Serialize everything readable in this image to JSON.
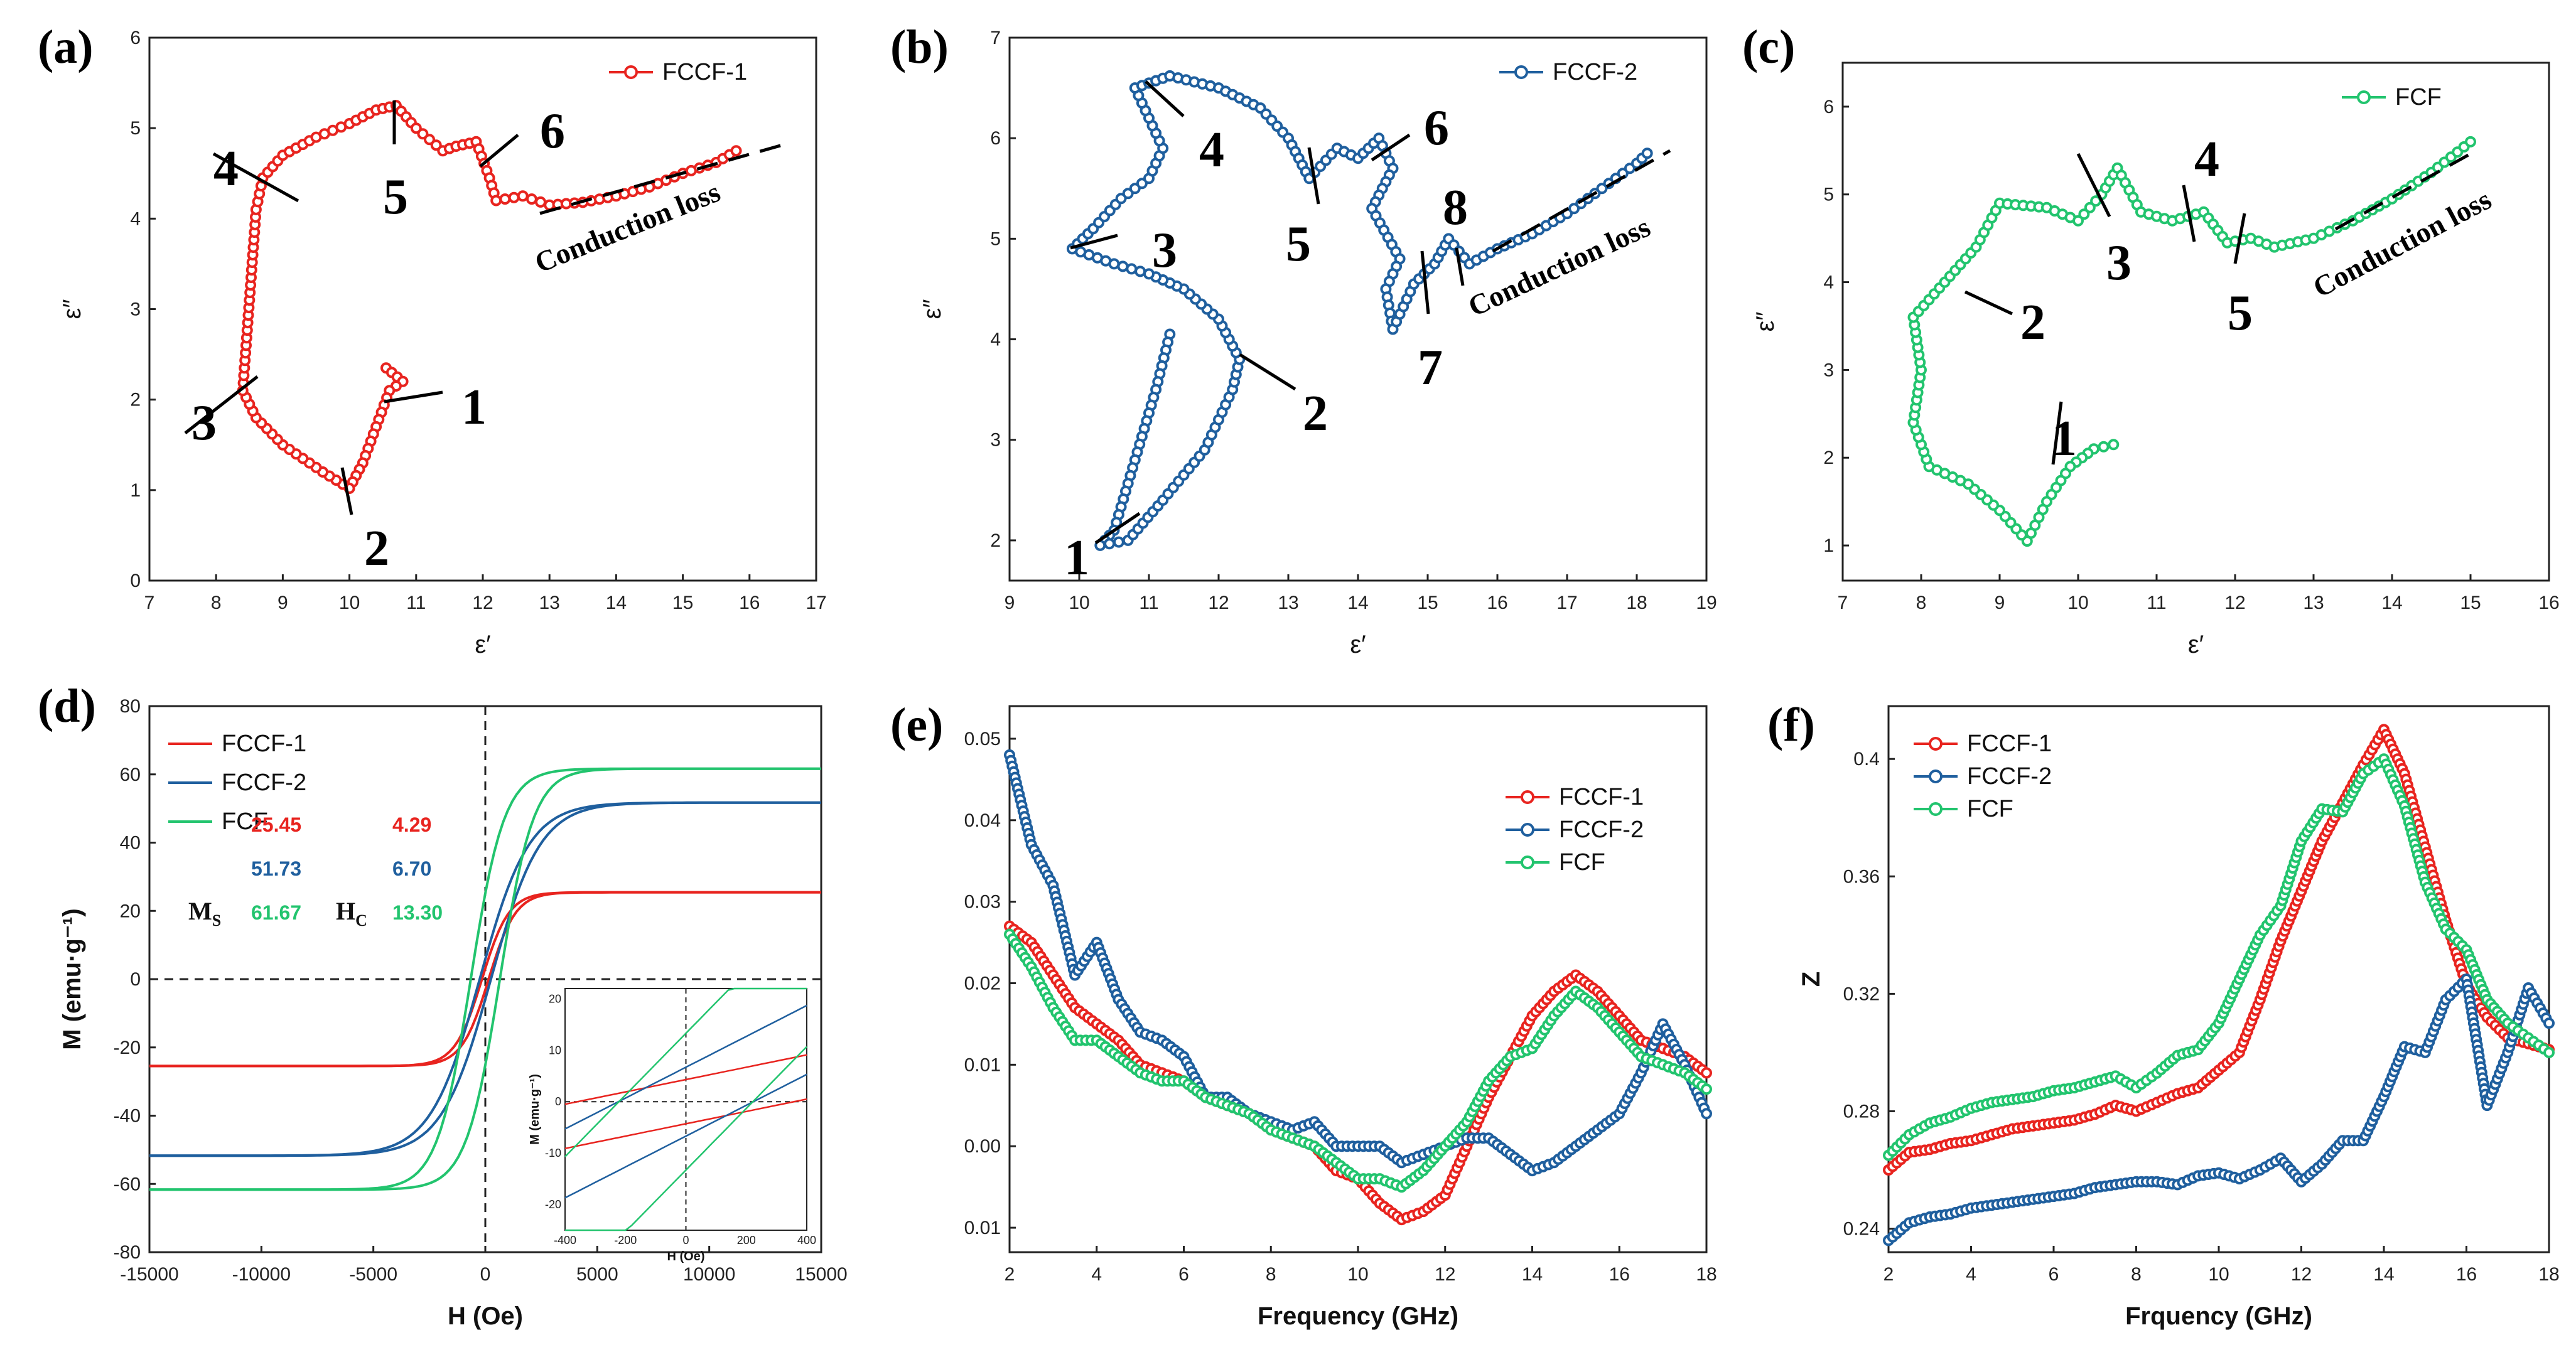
{
  "figure": {
    "panels": {
      "a": {
        "label": "(a)",
        "legend": "FCCF-1",
        "xlabel": "ε′",
        "ylabel": "ε″",
        "color": "#e8241f"
      },
      "b": {
        "label": "(b)",
        "legend": "FCCF-2",
        "xlabel": "ε′",
        "ylabel": "ε″",
        "color": "#1f5f9e"
      },
      "c": {
        "label": "(c)",
        "legend": "FCF",
        "xlabel": "ε′",
        "ylabel": "ε″",
        "color": "#22c46e"
      },
      "d": {
        "label": "(d)",
        "xlabel": "H (Oe)",
        "ylabel": "M (emu·g⁻¹)",
        "legend": [
          "FCCF-1",
          "FCCF-2",
          "FCF"
        ],
        "ms_label": "M",
        "ms_sub": "S",
        "hc_label": "H",
        "hc_sub": "C",
        "ms_values": [
          "25.45",
          "51.73",
          "61.67"
        ],
        "hc_values": [
          "4.29",
          "6.70",
          "13.30"
        ],
        "inset_xlabel": "H (Oe)",
        "inset_ylabel": "M (emu·g⁻¹)"
      },
      "e": {
        "label": "(e)",
        "xlabel": "Frequency (GHz)",
        "legend": [
          "FCCF-1",
          "FCCF-2",
          "FCF"
        ]
      },
      "f": {
        "label": "(f)",
        "xlabel": "Frquency (GHz)",
        "ylabel": "Z",
        "legend": [
          "FCCF-1",
          "FCCF-2",
          "FCF"
        ]
      }
    },
    "annotations": {
      "a": [
        "1",
        "2",
        "3",
        "4",
        "5",
        "6",
        "Conduction loss"
      ],
      "b": [
        "1",
        "2",
        "3",
        "4",
        "5",
        "6",
        "7",
        "8",
        "Conduction loss"
      ],
      "c": [
        "1",
        "2",
        "3",
        "4",
        "5",
        "Conduction loss"
      ]
    }
  },
  "chart_data": [
    {
      "id": "a",
      "type": "scatter",
      "title": "",
      "xlabel": "ε′",
      "ylabel": "ε″",
      "xlim": [
        7,
        17
      ],
      "ylim": [
        0,
        6
      ],
      "xticks": [
        7,
        8,
        9,
        10,
        11,
        12,
        13,
        14,
        15,
        16,
        17
      ],
      "yticks": [
        0,
        1,
        2,
        3,
        4,
        5,
        6
      ],
      "series": [
        {
          "name": "FCCF-1",
          "color": "#e8241f",
          "points": [
            [
              10.55,
              2.35
            ],
            [
              10.8,
              2.2
            ],
            [
              10.6,
              2.1
            ],
            [
              10.4,
              1.7
            ],
            [
              10.2,
              1.3
            ],
            [
              10.0,
              1.02
            ],
            [
              9.6,
              1.2
            ],
            [
              9.0,
              1.5
            ],
            [
              8.6,
              1.8
            ],
            [
              8.4,
              2.1
            ],
            [
              8.45,
              2.6
            ],
            [
              8.5,
              3.1
            ],
            [
              8.55,
              3.6
            ],
            [
              8.6,
              4.1
            ],
            [
              8.7,
              4.45
            ],
            [
              9.0,
              4.7
            ],
            [
              9.5,
              4.9
            ],
            [
              10.0,
              5.05
            ],
            [
              10.4,
              5.2
            ],
            [
              10.7,
              5.25
            ],
            [
              11.0,
              5.0
            ],
            [
              11.4,
              4.75
            ],
            [
              11.6,
              4.8
            ],
            [
              11.9,
              4.85
            ],
            [
              12.1,
              4.45
            ],
            [
              12.2,
              4.2
            ],
            [
              12.6,
              4.25
            ],
            [
              13.0,
              4.15
            ],
            [
              13.5,
              4.18
            ],
            [
              14.0,
              4.25
            ],
            [
              14.5,
              4.35
            ],
            [
              15.0,
              4.5
            ],
            [
              15.5,
              4.62
            ],
            [
              15.8,
              4.75
            ]
          ]
        }
      ]
    },
    {
      "id": "b",
      "type": "scatter",
      "title": "",
      "xlabel": "ε′",
      "ylabel": "ε″",
      "xlim": [
        9,
        19
      ],
      "ylim": [
        1.6,
        7
      ],
      "xticks": [
        9,
        10,
        11,
        12,
        13,
        14,
        15,
        16,
        17,
        18,
        19
      ],
      "yticks": [
        2,
        3,
        4,
        5,
        6,
        7
      ],
      "series": [
        {
          "name": "FCCF-2",
          "color": "#1f5f9e",
          "points": [
            [
              11.3,
              4.05
            ],
            [
              11.1,
              3.5
            ],
            [
              10.8,
              2.8
            ],
            [
              10.5,
              2.1
            ],
            [
              10.3,
              1.95
            ],
            [
              10.7,
              2.0
            ],
            [
              11.2,
              2.4
            ],
            [
              11.8,
              2.9
            ],
            [
              12.2,
              3.5
            ],
            [
              12.3,
              3.8
            ],
            [
              12.0,
              4.2
            ],
            [
              11.5,
              4.5
            ],
            [
              11.0,
              4.65
            ],
            [
              10.5,
              4.75
            ],
            [
              9.9,
              4.9
            ],
            [
              10.2,
              5.1
            ],
            [
              10.6,
              5.4
            ],
            [
              11.0,
              5.6
            ],
            [
              11.2,
              5.9
            ],
            [
              10.8,
              6.5
            ],
            [
              11.3,
              6.62
            ],
            [
              12.0,
              6.5
            ],
            [
              12.6,
              6.3
            ],
            [
              13.0,
              6.0
            ],
            [
              13.3,
              5.6
            ],
            [
              13.7,
              5.9
            ],
            [
              14.0,
              5.8
            ],
            [
              14.3,
              6.0
            ],
            [
              14.5,
              5.7
            ],
            [
              14.2,
              5.3
            ],
            [
              14.6,
              4.8
            ],
            [
              14.4,
              4.5
            ],
            [
              14.5,
              4.1
            ],
            [
              14.8,
              4.55
            ],
            [
              15.1,
              4.75
            ],
            [
              15.3,
              5.0
            ],
            [
              15.6,
              4.75
            ],
            [
              16.0,
              4.9
            ],
            [
              16.5,
              5.05
            ],
            [
              17.0,
              5.25
            ],
            [
              17.5,
              5.5
            ],
            [
              18.0,
              5.75
            ],
            [
              18.15,
              5.85
            ]
          ]
        }
      ]
    },
    {
      "id": "c",
      "type": "scatter",
      "title": "",
      "xlabel": "ε′",
      "ylabel": "ε″",
      "xlim": [
        7,
        16
      ],
      "ylim": [
        0.6,
        6.5
      ],
      "xticks": [
        7,
        8,
        9,
        10,
        11,
        12,
        13,
        14,
        15,
        16
      ],
      "yticks": [
        1,
        2,
        3,
        4,
        5,
        6
      ],
      "series": [
        {
          "name": "FCF",
          "color": "#22c46e",
          "points": [
            [
              10.45,
              2.15
            ],
            [
              10.2,
              2.1
            ],
            [
              9.9,
              1.9
            ],
            [
              9.6,
              1.5
            ],
            [
              9.35,
              1.05
            ],
            [
              9.0,
              1.4
            ],
            [
              8.6,
              1.7
            ],
            [
              8.1,
              1.9
            ],
            [
              7.9,
              2.4
            ],
            [
              8.0,
              3.0
            ],
            [
              7.9,
              3.6
            ],
            [
              8.3,
              4.0
            ],
            [
              8.7,
              4.4
            ],
            [
              9.0,
              4.9
            ],
            [
              9.6,
              4.85
            ],
            [
              10.0,
              4.7
            ],
            [
              10.3,
              5.0
            ],
            [
              10.5,
              5.3
            ],
            [
              10.8,
              4.8
            ],
            [
              11.2,
              4.7
            ],
            [
              11.6,
              4.8
            ],
            [
              11.9,
              4.45
            ],
            [
              12.2,
              4.5
            ],
            [
              12.5,
              4.4
            ],
            [
              13.0,
              4.5
            ],
            [
              13.5,
              4.7
            ],
            [
              14.0,
              4.95
            ],
            [
              14.5,
              5.25
            ],
            [
              15.0,
              5.6
            ]
          ]
        }
      ]
    },
    {
      "id": "d",
      "type": "line",
      "title": "",
      "xlabel": "H (Oe)",
      "ylabel": "M (emu·g⁻¹)",
      "xlim": [
        -15000,
        15000
      ],
      "ylim": [
        -80,
        80
      ],
      "xticks": [
        -15000,
        -10000,
        -5000,
        0,
        5000,
        10000,
        15000
      ],
      "yticks": [
        -80,
        -60,
        -40,
        -20,
        0,
        20,
        40,
        60,
        80
      ],
      "series": [
        {
          "name": "FCCF-1",
          "color": "#e8241f",
          "Ms": 25.45,
          "Hc": 4.29
        },
        {
          "name": "FCCF-2",
          "color": "#1f5f9e",
          "Ms": 51.73,
          "Hc": 6.7
        },
        {
          "name": "FCF",
          "color": "#22c46e",
          "Ms": 61.67,
          "Hc": 13.3
        }
      ],
      "inset": {
        "xlim": [
          -400,
          400
        ],
        "ylim": [
          -25,
          22
        ],
        "xticks": [
          -400,
          -200,
          0,
          200,
          400
        ],
        "yticks": [
          -20,
          -10,
          0,
          10,
          20
        ]
      }
    },
    {
      "id": "e",
      "type": "line",
      "title": "",
      "xlabel": "Frequency (GHz)",
      "ylabel": "",
      "xlim": [
        2,
        18
      ],
      "ylim": [
        -0.013,
        0.054
      ],
      "xticks": [
        2,
        4,
        6,
        8,
        10,
        12,
        14,
        16,
        18
      ],
      "yticks": [
        0.05,
        0.04,
        0.03,
        0.02,
        0.01,
        0.0,
        -0.01
      ],
      "ytick_labels": [
        "0.05",
        "0.04",
        "0.03",
        "0.02",
        "0.01",
        "0.00",
        "0.01"
      ],
      "x": [
        2,
        2.5,
        3,
        3.5,
        4,
        4.5,
        5,
        5.5,
        6,
        6.5,
        7,
        7.5,
        8,
        8.5,
        9,
        9.5,
        10,
        10.5,
        11,
        11.5,
        12,
        12.5,
        13,
        13.5,
        14,
        14.5,
        15,
        15.5,
        16,
        16.5,
        17,
        17.5,
        18
      ],
      "series": [
        {
          "name": "FCCF-1",
          "color": "#e8241f",
          "values": [
            0.027,
            0.025,
            0.021,
            0.017,
            0.015,
            0.013,
            0.01,
            0.009,
            0.008,
            0.006,
            0.005,
            0.004,
            0.002,
            0.001,
            0.0,
            -0.003,
            -0.004,
            -0.007,
            -0.009,
            -0.008,
            -0.006,
            0.0,
            0.006,
            0.011,
            0.016,
            0.019,
            0.021,
            0.019,
            0.016,
            0.013,
            0.012,
            0.011,
            0.009
          ]
        },
        {
          "name": "FCCF-2",
          "color": "#1f5f9e",
          "values": [
            0.048,
            0.037,
            0.032,
            0.021,
            0.025,
            0.018,
            0.014,
            0.013,
            0.011,
            0.006,
            0.006,
            0.004,
            0.003,
            0.002,
            0.003,
            0.0,
            0.0,
            0.0,
            -0.002,
            -0.001,
            0.0,
            0.001,
            0.001,
            -0.001,
            -0.003,
            -0.002,
            0.0,
            0.002,
            0.004,
            0.009,
            0.015,
            0.01,
            0.004
          ]
        },
        {
          "name": "FCF",
          "color": "#22c46e",
          "values": [
            0.026,
            0.022,
            0.017,
            0.013,
            0.013,
            0.011,
            0.009,
            0.008,
            0.008,
            0.006,
            0.005,
            0.004,
            0.002,
            0.001,
            0.0,
            -0.002,
            -0.004,
            -0.004,
            -0.005,
            -0.003,
            0.0,
            0.003,
            0.008,
            0.011,
            0.012,
            0.016,
            0.019,
            0.017,
            0.014,
            0.011,
            0.01,
            0.009,
            0.007
          ]
        }
      ]
    },
    {
      "id": "f",
      "type": "line",
      "title": "",
      "xlabel": "Frquency (GHz)",
      "ylabel": "Z",
      "xlim": [
        2,
        18
      ],
      "ylim": [
        0.232,
        0.418
      ],
      "xticks": [
        2,
        4,
        6,
        8,
        10,
        12,
        14,
        16,
        18
      ],
      "yticks": [
        0.24,
        0.28,
        0.32,
        0.36,
        0.4
      ],
      "x": [
        2,
        2.5,
        3,
        3.5,
        4,
        4.5,
        5,
        5.5,
        6,
        6.5,
        7,
        7.5,
        8,
        8.5,
        9,
        9.5,
        10,
        10.5,
        11,
        11.5,
        12,
        12.5,
        13,
        13.5,
        14,
        14.5,
        15,
        15.5,
        16,
        16.5,
        17,
        17.5,
        18
      ],
      "series": [
        {
          "name": "FCCF-1",
          "color": "#e8241f",
          "values": [
            0.26,
            0.266,
            0.267,
            0.269,
            0.27,
            0.272,
            0.274,
            0.275,
            0.276,
            0.277,
            0.279,
            0.282,
            0.28,
            0.283,
            0.286,
            0.288,
            0.294,
            0.3,
            0.318,
            0.338,
            0.355,
            0.372,
            0.385,
            0.398,
            0.41,
            0.395,
            0.37,
            0.345,
            0.323,
            0.312,
            0.305,
            0.303,
            0.301
          ]
        },
        {
          "name": "FCCF-2",
          "color": "#1f5f9e",
          "values": [
            0.236,
            0.242,
            0.244,
            0.245,
            0.247,
            0.248,
            0.249,
            0.25,
            0.251,
            0.252,
            0.254,
            0.255,
            0.256,
            0.256,
            0.255,
            0.258,
            0.259,
            0.257,
            0.26,
            0.264,
            0.256,
            0.262,
            0.27,
            0.27,
            0.285,
            0.302,
            0.3,
            0.318,
            0.325,
            0.282,
            0.3,
            0.322,
            0.31
          ]
        },
        {
          "name": "FCF",
          "color": "#22c46e",
          "values": [
            0.265,
            0.272,
            0.276,
            0.278,
            0.281,
            0.283,
            0.284,
            0.285,
            0.287,
            0.288,
            0.29,
            0.292,
            0.288,
            0.293,
            0.299,
            0.301,
            0.31,
            0.325,
            0.34,
            0.35,
            0.372,
            0.383,
            0.382,
            0.395,
            0.4,
            0.384,
            0.358,
            0.342,
            0.335,
            0.318,
            0.31,
            0.305,
            0.3
          ]
        }
      ]
    }
  ]
}
